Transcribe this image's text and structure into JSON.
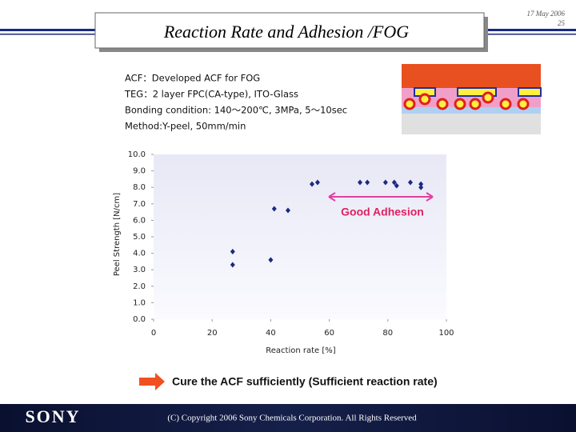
{
  "slide": {
    "title": "Reaction Rate and Adhesion /FOG",
    "date": "17 May 2006",
    "page": "25",
    "conditions": [
      "ACF：Developed ACF for FOG",
      "TEG：2 layer FPC(CA-type), ITO-Glass",
      "Bonding condition: 140〜200℃, 3MPa, 5〜10sec",
      "Method:Y-peel, 50mm/min"
    ],
    "conclusion": "Cure the ACF sufficiently (Sufficient reaction rate)",
    "logo": "SONY",
    "copyright": "(C) Copyright 2006 Sony Chemicals Corporation. All Rights Reserved"
  },
  "chart_data": {
    "type": "scatter",
    "x": [
      27,
      27,
      40,
      41.2,
      45.9,
      54.1,
      56,
      70.5,
      73,
      79.2,
      82.2,
      83,
      87.7,
      91.3,
      91.3
    ],
    "values": [
      4.1,
      3.3,
      3.6,
      6.7,
      6.6,
      8.2,
      8.3,
      8.3,
      8.3,
      8.3,
      8.3,
      8.1,
      8.3,
      8.2,
      8.0
    ],
    "color": "#1a2a80",
    "xlabel": "Reaction rate [%]",
    "ylabel": "Peel Strength [N/cm]",
    "annotation": "Good Adhesion",
    "xlim": [
      0,
      100
    ],
    "xticks": [
      0,
      20,
      40,
      60,
      80,
      100
    ],
    "ylim": [
      0,
      10
    ],
    "yticks": [
      {
        "value": 0,
        "label": "0.0"
      },
      {
        "value": 1,
        "label": "1.0"
      },
      {
        "value": 2,
        "label": "2.0"
      },
      {
        "value": 3,
        "label": "3.0"
      },
      {
        "value": 4,
        "label": "4.0"
      },
      {
        "value": 5,
        "label": "5.0"
      },
      {
        "value": 6,
        "label": "6.0"
      },
      {
        "value": 7,
        "label": "7.0"
      },
      {
        "value": 8,
        "label": "8.0"
      },
      {
        "value": 9,
        "label": "9.0"
      },
      {
        "value": 10,
        "label": "10.0"
      }
    ]
  }
}
